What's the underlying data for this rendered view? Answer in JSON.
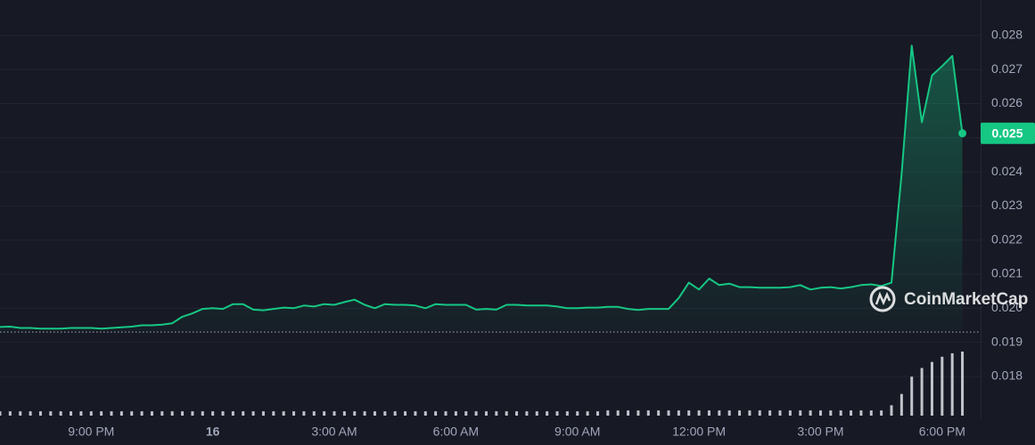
{
  "chart_data": {
    "type": "line",
    "color": "#16c784",
    "volume_color": "#d5d7de",
    "xlim": [
      0,
      96.8
    ],
    "xticks": [
      {
        "value": 9,
        "label": "9:00 PM"
      },
      {
        "value": 21,
        "label": "16"
      },
      {
        "value": 33,
        "label": "3:00 AM"
      },
      {
        "value": 45,
        "label": "6:00 AM"
      },
      {
        "value": 57,
        "label": "9:00 AM"
      },
      {
        "value": 69,
        "label": "12:00 PM"
      },
      {
        "value": 81,
        "label": "3:00 PM"
      },
      {
        "value": 93,
        "label": "6:00 PM"
      }
    ],
    "ylim": [
      0.01685,
      0.02904
    ],
    "yticks": [
      0.018,
      0.019,
      {
        "value": 0.02,
        "label": "0.020"
      },
      0.021,
      0.022,
      0.023,
      0.024,
      0.025,
      0.026,
      0.027,
      0.028
    ],
    "grid": true,
    "reference_line": 0.0193,
    "last_price_label": "0.025",
    "watermark": "CoinMarketCap",
    "values": [
      0.01945,
      0.01946,
      0.01942,
      0.01942,
      0.0194,
      0.0194,
      0.0194,
      0.01942,
      0.01942,
      0.01942,
      0.0194,
      0.01942,
      0.01944,
      0.01946,
      0.0195,
      0.0195,
      0.01952,
      0.01956,
      0.01975,
      0.01985,
      0.01998,
      0.02,
      0.01998,
      0.02012,
      0.02012,
      0.01996,
      0.01994,
      0.01998,
      0.02002,
      0.02,
      0.02008,
      0.02005,
      0.02012,
      0.0201,
      0.02018,
      0.02025,
      0.0201,
      0.02,
      0.02012,
      0.0201,
      0.0201,
      0.02008,
      0.02,
      0.02012,
      0.0201,
      0.0201,
      0.0201,
      0.01996,
      0.01998,
      0.01996,
      0.0201,
      0.0201,
      0.02008,
      0.02008,
      0.02008,
      0.02005,
      0.02,
      0.02,
      0.02002,
      0.02002,
      0.02004,
      0.02004,
      0.01998,
      0.01995,
      0.01998,
      0.01998,
      0.01998,
      0.0203,
      0.02075,
      0.02055,
      0.02087,
      0.02068,
      0.02072,
      0.02062,
      0.02062,
      0.0206,
      0.0206,
      0.0206,
      0.02062,
      0.02068,
      0.02055,
      0.0206,
      0.02062,
      0.02058,
      0.02062,
      0.02068,
      0.0207,
      0.02065,
      0.02075,
      0.02395,
      0.0277,
      0.02545,
      0.02683,
      0.0271,
      0.0274,
      0.02513
    ],
    "volume": [
      5,
      5,
      5,
      5,
      5,
      5,
      5,
      5,
      5,
      5,
      5,
      5,
      5,
      5,
      5,
      5,
      5,
      5,
      5,
      5,
      5,
      5,
      5,
      5,
      5,
      5,
      5,
      5,
      5,
      5,
      5,
      5,
      5,
      5,
      5,
      5,
      5,
      5,
      5,
      5,
      5,
      5,
      5,
      5,
      5,
      5,
      5,
      5,
      5,
      5,
      5,
      5,
      5,
      5,
      5,
      5,
      5,
      5,
      5,
      5,
      6,
      6,
      6,
      6,
      6,
      6,
      6,
      6,
      6,
      6,
      6,
      6,
      6,
      6,
      6,
      6,
      6,
      6,
      6,
      6,
      6,
      6,
      6,
      6,
      6,
      6,
      6,
      6,
      12,
      25,
      45,
      55,
      62,
      68,
      72,
      74
    ]
  }
}
